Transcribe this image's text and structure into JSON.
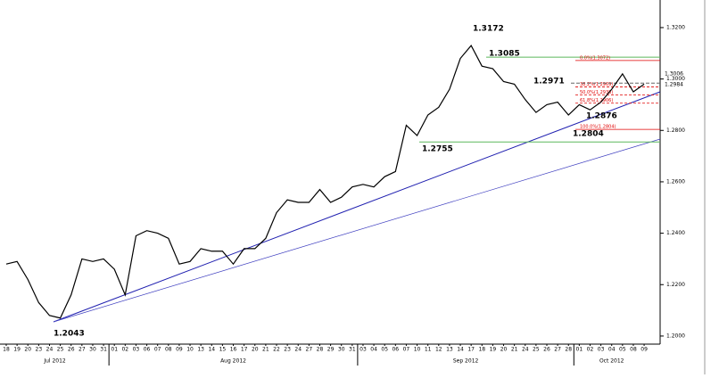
{
  "chart_data": {
    "type": "line",
    "color": "#000000",
    "categories": [
      "18",
      "19",
      "20",
      "23",
      "24",
      "25",
      "26",
      "27",
      "30",
      "31",
      "01",
      "02",
      "03",
      "06",
      "07",
      "08",
      "09",
      "10",
      "13",
      "14",
      "15",
      "16",
      "17",
      "20",
      "21",
      "22",
      "23",
      "24",
      "27",
      "28",
      "29",
      "30",
      "31",
      "03",
      "04",
      "05",
      "06",
      "07",
      "10",
      "11",
      "12",
      "13",
      "14",
      "17",
      "18",
      "19",
      "20",
      "21",
      "24",
      "25",
      "26",
      "27",
      "28",
      "01",
      "02",
      "03",
      "04",
      "05",
      "08",
      "09"
    ],
    "month_labels": [
      "Jul 2012",
      "Aug 2012",
      "Sep 2012",
      "Oct 2012"
    ],
    "values": [
      1.228,
      1.229,
      1.222,
      1.213,
      1.208,
      1.207,
      1.216,
      1.23,
      1.229,
      1.23,
      1.226,
      1.216,
      1.239,
      1.241,
      1.24,
      1.238,
      1.228,
      1.229,
      1.234,
      1.233,
      1.233,
      1.228,
      1.234,
      1.234,
      1.238,
      1.248,
      1.253,
      1.252,
      1.252,
      1.257,
      1.252,
      1.254,
      1.258,
      1.259,
      1.258,
      1.262,
      1.264,
      1.282,
      1.278,
      1.286,
      1.289,
      1.296,
      1.308,
      1.313,
      1.305,
      1.304,
      1.299,
      1.298,
      1.292,
      1.287,
      1.29,
      1.291,
      1.286,
      1.29,
      1.288,
      1.291,
      1.296,
      1.302,
      1.295,
      1.298
    ],
    "ylim": [
      1.1972,
      1.329
    ],
    "yticks": [
      {
        "value": 1.2,
        "label": "1.2000"
      },
      {
        "value": 1.22,
        "label": "1.2200"
      },
      {
        "value": 1.24,
        "label": "1.2400"
      },
      {
        "value": 1.26,
        "label": "1.2600"
      },
      {
        "value": 1.28,
        "label": "1.2800"
      },
      {
        "value": 1.3,
        "label": "1.3000"
      },
      {
        "value": 1.32,
        "label": "1.3200"
      }
    ],
    "price_tags": [
      1.3006,
      1.2984
    ],
    "annotations": [
      "1.3172",
      "1.3085",
      "1.2971",
      "1.2755",
      "1.2876",
      "1.2804",
      "1.2043"
    ],
    "fib_levels": [
      {
        "label": "0.0%(1.3072)",
        "value": 1.3072
      },
      {
        "label": "38.2%(1.2969)",
        "value": 1.2969
      },
      {
        "label": "50.0%(1.2938)",
        "value": 1.2938
      },
      {
        "label": "61.8%(1.2906)",
        "value": 1.2906
      },
      {
        "label": "100.0%(1.2804)",
        "value": 1.2804
      }
    ],
    "support_levels": [
      1.3085,
      1.2755
    ]
  }
}
